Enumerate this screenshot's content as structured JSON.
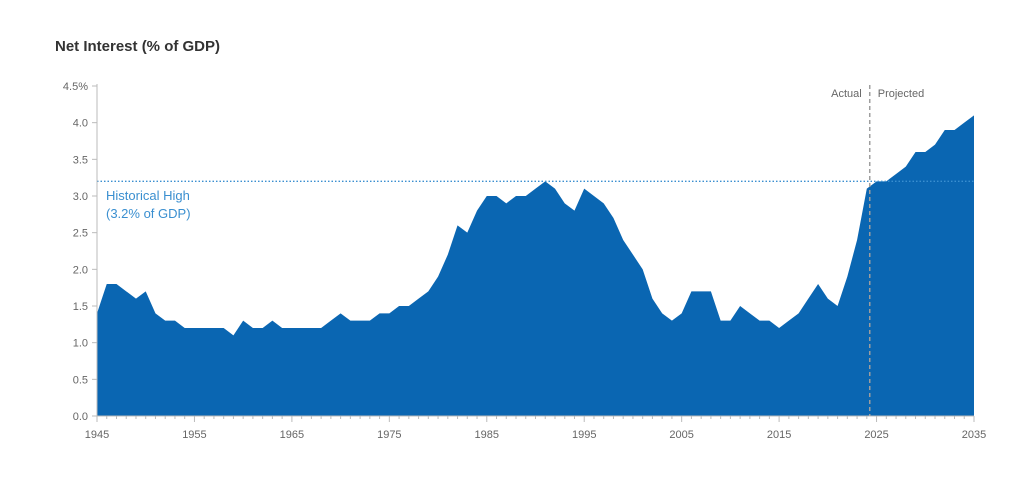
{
  "chart_data": {
    "type": "area",
    "title": "Net Interest (% of GDP)",
    "xlabel": "",
    "ylabel": "",
    "x_ticks": [
      "1945",
      "1955",
      "1965",
      "1975",
      "1985",
      "1995",
      "2005",
      "2015",
      "2025",
      "2035"
    ],
    "y_ticks": [
      "0.0",
      "0.5",
      "1.0",
      "1.5",
      "2.0",
      "2.5",
      "3.0",
      "3.5",
      "4.0",
      "4.5%"
    ],
    "xlim": [
      1945,
      2035
    ],
    "ylim": [
      0,
      4.5
    ],
    "fill_color": "#0a66b2",
    "reference_color": "#3a8fd0",
    "series": [
      {
        "x": [
          1945,
          1946,
          1947,
          1948,
          1949,
          1950,
          1951,
          1952,
          1953,
          1954,
          1955,
          1956,
          1957,
          1958,
          1959,
          1960,
          1961,
          1962,
          1963,
          1964,
          1965,
          1966,
          1967,
          1968,
          1969,
          1970,
          1971,
          1972,
          1973,
          1974,
          1975,
          1976,
          1977,
          1978,
          1979,
          1980,
          1981,
          1982,
          1983,
          1984,
          1985,
          1986,
          1987,
          1988,
          1989,
          1990,
          1991,
          1992,
          1993,
          1994,
          1995,
          1996,
          1997,
          1998,
          1999,
          2000,
          2001,
          2002,
          2003,
          2004,
          2005,
          2006,
          2007,
          2008,
          2009,
          2010,
          2011,
          2012,
          2013,
          2014,
          2015,
          2016,
          2017,
          2018,
          2019,
          2020,
          2021,
          2022,
          2023,
          2024,
          2025,
          2026,
          2027,
          2028,
          2029,
          2030,
          2031,
          2032,
          2033,
          2034,
          2035
        ],
        "values": [
          1.4,
          1.8,
          1.8,
          1.7,
          1.6,
          1.7,
          1.4,
          1.3,
          1.3,
          1.2,
          1.2,
          1.2,
          1.2,
          1.2,
          1.1,
          1.3,
          1.2,
          1.2,
          1.3,
          1.2,
          1.2,
          1.2,
          1.2,
          1.2,
          1.3,
          1.4,
          1.3,
          1.3,
          1.3,
          1.4,
          1.4,
          1.5,
          1.5,
          1.6,
          1.7,
          1.9,
          2.2,
          2.6,
          2.5,
          2.8,
          3.0,
          3.0,
          2.9,
          3.0,
          3.0,
          3.1,
          3.2,
          3.1,
          2.9,
          2.8,
          3.1,
          3.0,
          2.9,
          2.7,
          2.4,
          2.2,
          2.0,
          1.6,
          1.4,
          1.3,
          1.4,
          1.7,
          1.7,
          1.7,
          1.3,
          1.3,
          1.5,
          1.4,
          1.3,
          1.3,
          1.2,
          1.3,
          1.4,
          1.6,
          1.8,
          1.6,
          1.5,
          1.9,
          2.4,
          3.1,
          3.2,
          3.2,
          3.3,
          3.4,
          3.6,
          3.6,
          3.7,
          3.9,
          3.9,
          4.0,
          4.1
        ]
      }
    ],
    "reference_line": {
      "value": 3.2,
      "label_line1": "Historical High",
      "label_line2": "(3.2% of GDP)"
    },
    "divider": {
      "x": 2024.3,
      "left_label": "Actual",
      "right_label": "Projected"
    },
    "grid": false
  }
}
